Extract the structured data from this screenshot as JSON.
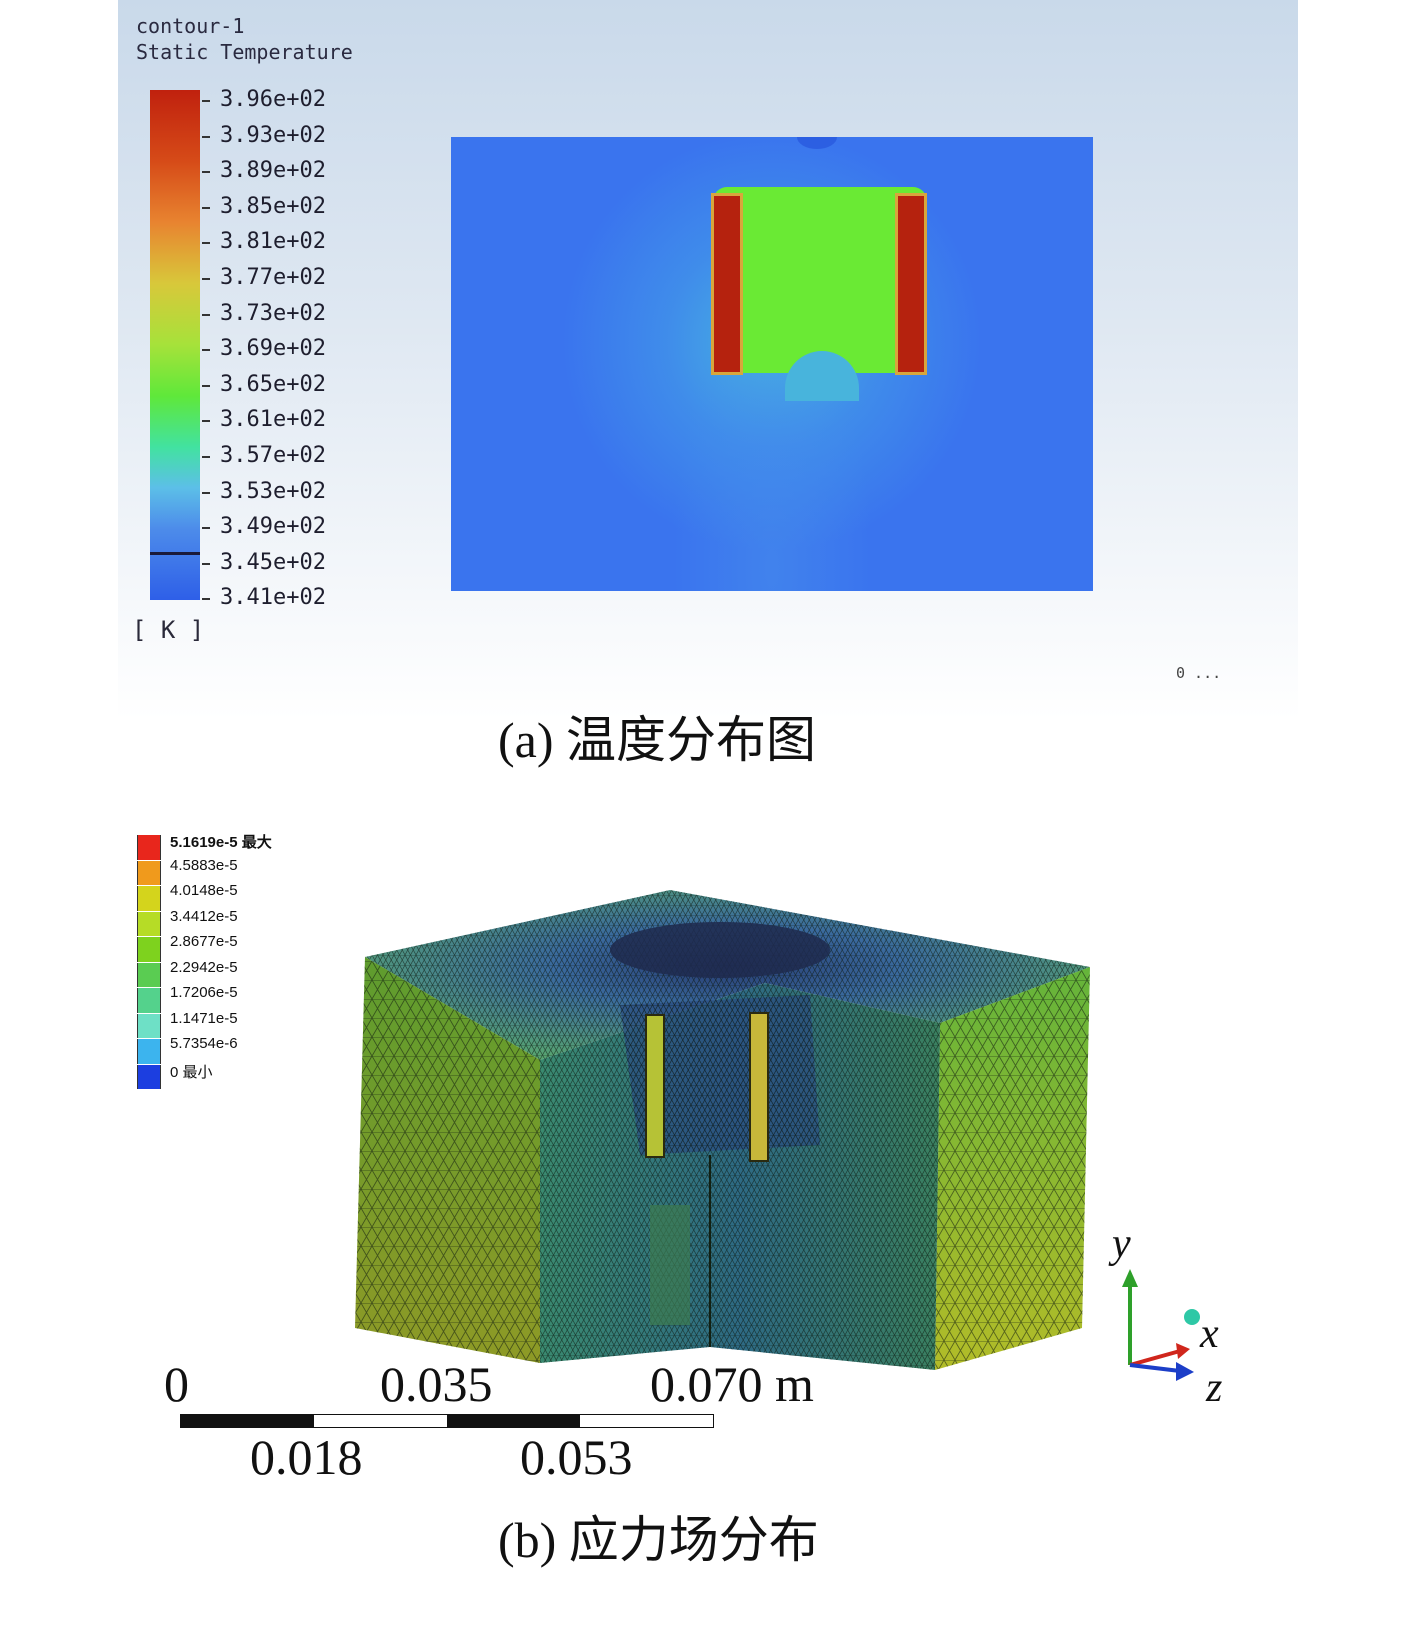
{
  "panel_a": {
    "legend_title_1": "contour-1",
    "legend_title_2": "Static Temperature",
    "unit": "[ K ]",
    "corner_text": "0 ...",
    "tick_labels": [
      "3.96e+02",
      "3.93e+02",
      "3.89e+02",
      "3.85e+02",
      "3.81e+02",
      "3.77e+02",
      "3.73e+02",
      "3.69e+02",
      "3.65e+02",
      "3.61e+02",
      "3.57e+02",
      "3.53e+02",
      "3.49e+02",
      "3.45e+02",
      "3.41e+02"
    ],
    "caption": "(a) 温度分布图",
    "colors": {
      "hot": "#b5220e",
      "mid": "#5fe83a",
      "cool": "#3a74ee",
      "legend_top": "#c0210e",
      "legend_bottom": "#2e5fe8"
    }
  },
  "panel_b": {
    "legend_items": [
      {
        "label": "5.1619e-5 最大",
        "color": "#e8261c"
      },
      {
        "label": "4.5883e-5",
        "color": "#f09a1c"
      },
      {
        "label": "4.0148e-5",
        "color": "#d4d41c"
      },
      {
        "label": "3.4412e-5",
        "color": "#b6dc26"
      },
      {
        "label": "2.8677e-5",
        "color": "#7ed21e"
      },
      {
        "label": "2.2942e-5",
        "color": "#5acc52"
      },
      {
        "label": "1.7206e-5",
        "color": "#54d28c"
      },
      {
        "label": "1.1471e-5",
        "color": "#6ee0c6"
      },
      {
        "label": "5.7354e-6",
        "color": "#3cb4ee"
      },
      {
        "label": "0 最小",
        "color": "#1c3ee0"
      }
    ],
    "scale_top": [
      "0",
      "0.035",
      "0.070 m"
    ],
    "scale_bottom": [
      "0.018",
      "0.053"
    ],
    "axes": {
      "y": "y",
      "x": "x",
      "z": "z"
    },
    "caption": "(b) 应力场分布"
  }
}
